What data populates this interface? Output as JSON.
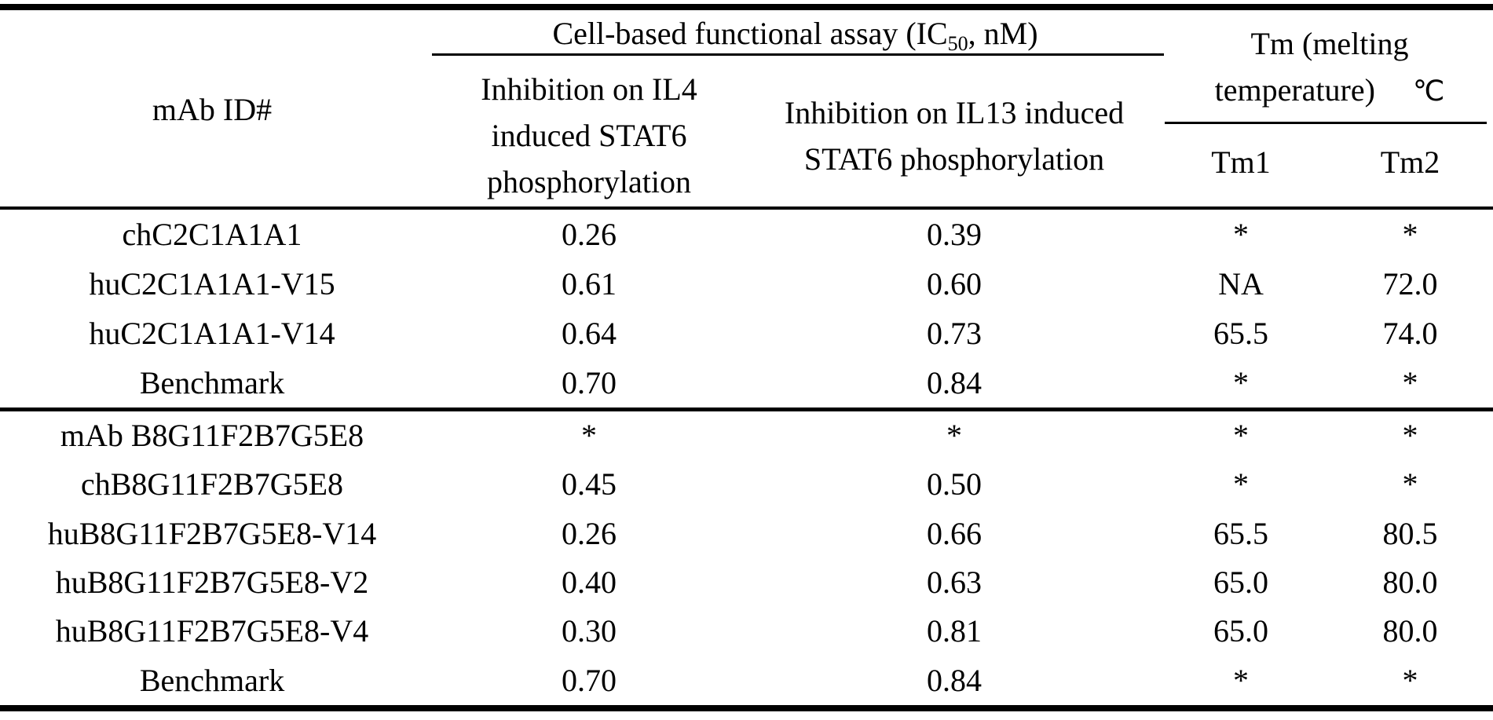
{
  "page": {
    "background_color": "#ffffff",
    "text_color": "#000000",
    "rule_color": "#000000"
  },
  "header": {
    "mab_id": "mAb ID#",
    "assay_group": {
      "prefix": "Cell-based functional assay (IC",
      "subscript": "50",
      "suffix": ", nM)"
    },
    "il4_lines": [
      "Inhibition on IL4",
      "induced STAT6",
      "phosphorylation"
    ],
    "il13_lines": [
      "Inhibition on IL13 induced",
      "STAT6 phosphorylation"
    ],
    "tm_group": {
      "line1": "Tm (melting",
      "line2": "temperature)",
      "unit": "℃"
    },
    "tm1": "Tm1",
    "tm2": "Tm2"
  },
  "group1": [
    {
      "id": "chC2C1A1A1",
      "il4": "0.26",
      "il13": "0.39",
      "tm1": "*",
      "tm2": "*"
    },
    {
      "id": "huC2C1A1A1-V15",
      "il4": "0.61",
      "il13": "0.60",
      "tm1": "NA",
      "tm2": "72.0"
    },
    {
      "id": "huC2C1A1A1-V14",
      "il4": "0.64",
      "il13": "0.73",
      "tm1": "65.5",
      "tm2": "74.0"
    },
    {
      "id": "Benchmark",
      "il4": "0.70",
      "il13": "0.84",
      "tm1": "*",
      "tm2": "*"
    }
  ],
  "group2": [
    {
      "id": "mAb B8G11F2B7G5E8",
      "il4": "*",
      "il13": "*",
      "tm1": "*",
      "tm2": "*"
    },
    {
      "id": "chB8G11F2B7G5E8",
      "il4": "0.45",
      "il13": "0.50",
      "tm1": "*",
      "tm2": "*"
    },
    {
      "id": "huB8G11F2B7G5E8-V14",
      "il4": "0.26",
      "il13": "0.66",
      "tm1": "65.5",
      "tm2": "80.5"
    },
    {
      "id": "huB8G11F2B7G5E8-V2",
      "il4": "0.40",
      "il13": "0.63",
      "tm1": "65.0",
      "tm2": "80.0"
    },
    {
      "id": "huB8G11F2B7G5E8-V4",
      "il4": "0.30",
      "il13": "0.81",
      "tm1": "65.0",
      "tm2": "80.0"
    },
    {
      "id": "Benchmark",
      "il4": "0.70",
      "il13": "0.84",
      "tm1": "*",
      "tm2": "*"
    }
  ]
}
